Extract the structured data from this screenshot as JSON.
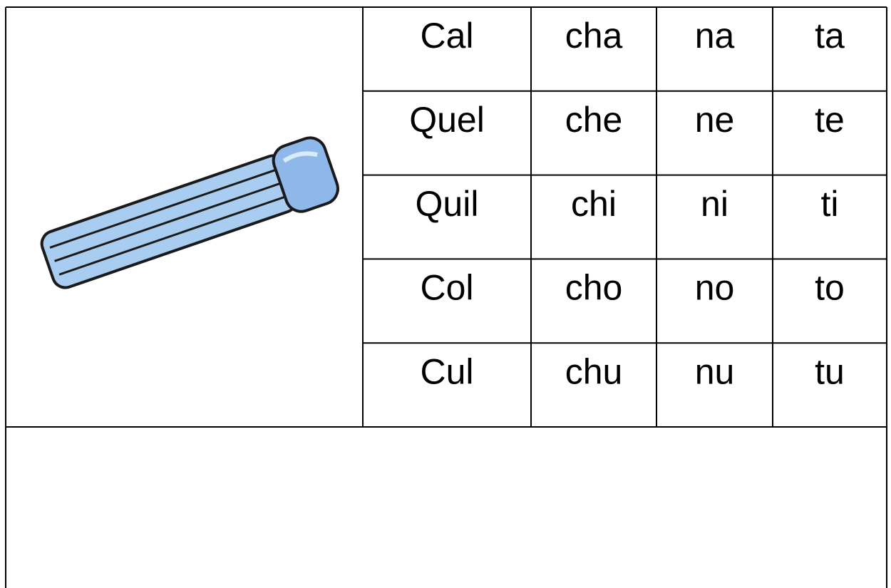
{
  "table": {
    "rows": [
      [
        "Cal",
        "cha",
        "na",
        "ta"
      ],
      [
        "Quel",
        "che",
        "ne",
        "te"
      ],
      [
        "Quil",
        "chi",
        "ni",
        "ti"
      ],
      [
        "Col",
        "cho",
        "no",
        "to"
      ],
      [
        "Cul",
        "chu",
        "nu",
        "tu"
      ]
    ]
  }
}
